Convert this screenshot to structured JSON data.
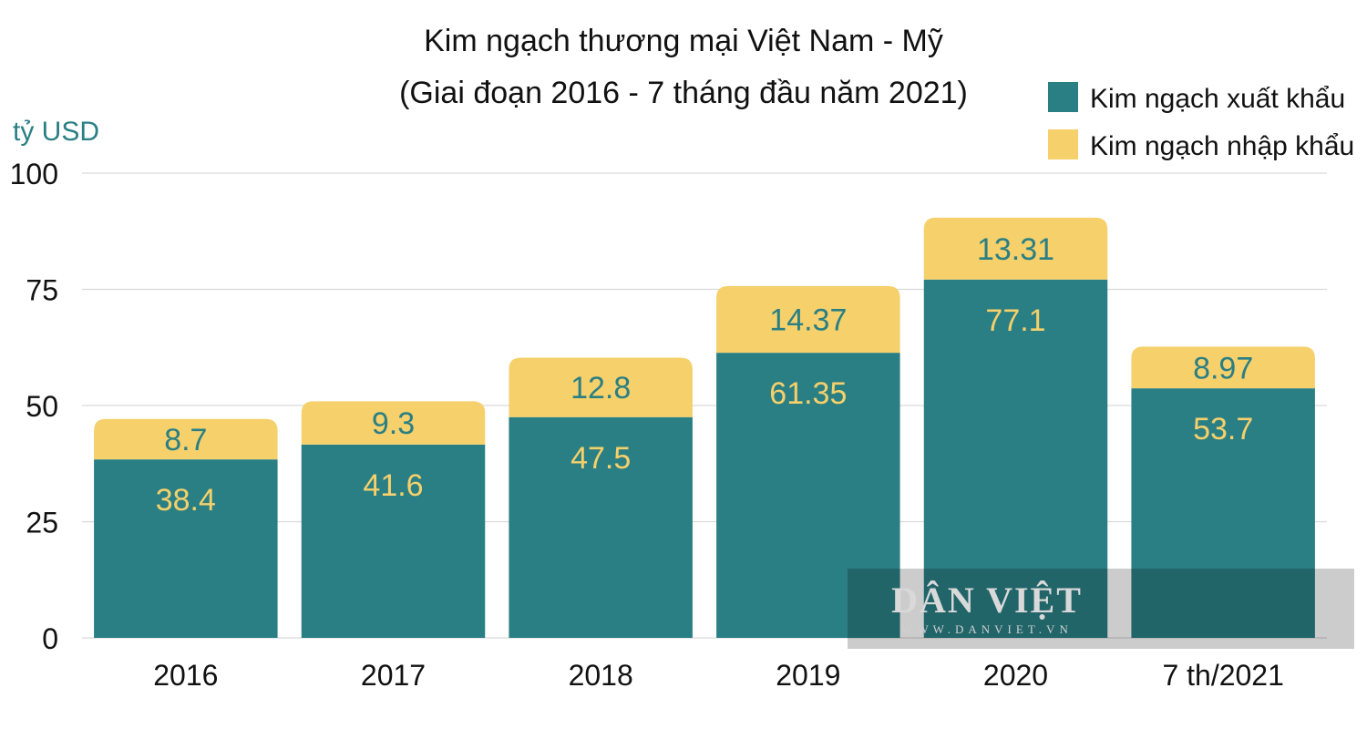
{
  "chart_data": {
    "type": "bar",
    "stacked": true,
    "title": "Kim ngạch thương mại Việt Nam - Mỹ",
    "subtitle": "(Giai đoạn 2016 - 7 tháng đầu năm 2021)",
    "ylabel": "tỷ USD",
    "xlabel": "",
    "ylim": [
      0,
      100
    ],
    "yticks": [
      "0",
      "25",
      "50",
      "75",
      "100"
    ],
    "grid": true,
    "legend_position": "top-right",
    "categories": [
      "2016",
      "2017",
      "2018",
      "2019",
      "2020",
      "7 th/2021"
    ],
    "series": [
      {
        "name": "Kim ngạch xuất khẩu",
        "color": "#2a7f84",
        "label_color": "#f5d06b",
        "values": [
          38.4,
          41.6,
          47.5,
          61.35,
          77.1,
          53.7
        ],
        "labels": [
          "38.4",
          "41.6",
          "47.5",
          "61.35",
          "77.1",
          "53.7"
        ]
      },
      {
        "name": "Kim ngạch nhập khẩu",
        "color": "#f5d06b",
        "label_color": "#2a7f84",
        "values": [
          8.7,
          9.3,
          12.8,
          14.37,
          13.31,
          8.97
        ],
        "labels": [
          "8.7",
          "9.3",
          "12.8",
          "14.37",
          "13.31",
          "8.97"
        ]
      }
    ]
  },
  "watermark": {
    "title": "DÂN VIỆT",
    "subtitle": "WWW.DANVIET.VN"
  }
}
